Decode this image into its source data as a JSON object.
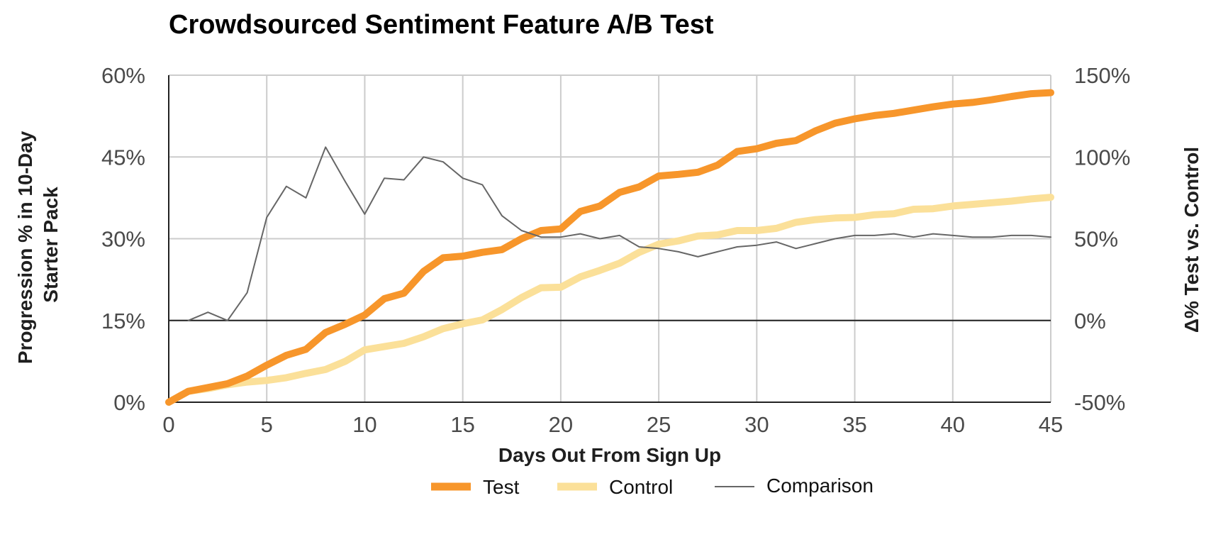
{
  "chart_data": {
    "type": "line",
    "title": "Crowdsourced Sentiment Feature A/B Test",
    "xlabel": "Days Out From Sign Up",
    "ylabel_left": "Progression % in 10-Day Starter Pack",
    "ylabel_left_lines": [
      "Progression % in 10-Day",
      "Starter Pack"
    ],
    "ylabel_right": "Δ% Test vs. Control",
    "xlim": [
      0,
      45
    ],
    "ylim_left": [
      0,
      60
    ],
    "ylim_right": [
      -50,
      150
    ],
    "x_ticks": [
      0,
      5,
      10,
      15,
      20,
      25,
      30,
      35,
      40,
      45
    ],
    "x_tick_labels": [
      "0",
      "5",
      "10",
      "15",
      "20",
      "25",
      "30",
      "35",
      "40",
      "45"
    ],
    "y_left_ticks": [
      0,
      15,
      30,
      45,
      60
    ],
    "y_left_tick_labels": [
      "0%",
      "15%",
      "30%",
      "45%",
      "60%"
    ],
    "y_right_ticks": [
      -50,
      0,
      50,
      100,
      150
    ],
    "y_right_tick_labels": [
      "-50%",
      "0%",
      "50%",
      "100%",
      "150%"
    ],
    "grid": true,
    "legend": "bottom-center",
    "series": [
      {
        "name": "Test",
        "axis": "left",
        "color": "#f7962b",
        "x": [
          0,
          1,
          2,
          3,
          4,
          5,
          6,
          7,
          8,
          9,
          10,
          11,
          12,
          13,
          14,
          15,
          16,
          17,
          18,
          19,
          20,
          21,
          22,
          23,
          24,
          25,
          26,
          27,
          28,
          29,
          30,
          31,
          32,
          33,
          34,
          35,
          36,
          37,
          38,
          39,
          40,
          41,
          42,
          43,
          44,
          45
        ],
        "values": [
          0,
          2,
          2.7,
          3.4,
          4.8,
          6.8,
          8.6,
          9.7,
          12.8,
          14.3,
          16,
          19,
          20,
          24,
          26.5,
          26.8,
          27.5,
          28,
          30,
          31.5,
          31.8,
          35,
          36,
          38.5,
          39.5,
          41.5,
          41.8,
          42.2,
          43.5,
          46,
          46.5,
          47.5,
          48,
          49.8,
          51.2,
          52,
          52.6,
          53,
          53.6,
          54.2,
          54.7,
          55,
          55.5,
          56.1,
          56.6,
          56.8
        ]
      },
      {
        "name": "Control",
        "axis": "left",
        "color": "#fbe099",
        "x": [
          0,
          1,
          2,
          3,
          4,
          5,
          6,
          7,
          8,
          9,
          10,
          11,
          12,
          13,
          14,
          15,
          16,
          17,
          18,
          19,
          20,
          21,
          22,
          23,
          24,
          25,
          26,
          27,
          28,
          29,
          30,
          31,
          32,
          33,
          34,
          35,
          36,
          37,
          38,
          39,
          40,
          41,
          42,
          43,
          44,
          45
        ],
        "values": [
          0,
          2,
          2.5,
          3.2,
          3.7,
          4,
          4.5,
          5.3,
          6,
          7.5,
          9.6,
          10.2,
          10.8,
          12,
          13.5,
          14.4,
          15.1,
          17,
          19.2,
          21,
          21.1,
          23,
          24.2,
          25.5,
          27.5,
          29,
          29.6,
          30.5,
          30.7,
          31.5,
          31.5,
          31.9,
          33,
          33.5,
          33.8,
          33.9,
          34.4,
          34.6,
          35.4,
          35.5,
          36,
          36.3,
          36.6,
          36.9,
          37.3,
          37.6
        ]
      },
      {
        "name": "Comparison",
        "axis": "right",
        "color": "#666666",
        "x": [
          1,
          2,
          3,
          4,
          5,
          6,
          7,
          8,
          9,
          10,
          11,
          12,
          13,
          14,
          15,
          16,
          17,
          18,
          19,
          20,
          21,
          22,
          23,
          24,
          25,
          26,
          27,
          28,
          29,
          30,
          31,
          32,
          33,
          34,
          35,
          36,
          37,
          38,
          39,
          40,
          41,
          42,
          43,
          44,
          45
        ],
        "values": [
          0,
          5,
          0,
          17,
          63,
          82,
          75,
          106,
          85,
          65,
          87,
          86,
          100,
          97,
          87,
          83,
          64,
          55,
          51,
          51,
          53,
          50,
          52,
          45,
          44,
          42,
          39,
          42,
          45,
          46,
          48,
          44,
          47,
          50,
          52,
          52,
          53,
          51,
          53,
          52,
          51,
          51,
          52,
          52,
          51
        ]
      }
    ]
  }
}
